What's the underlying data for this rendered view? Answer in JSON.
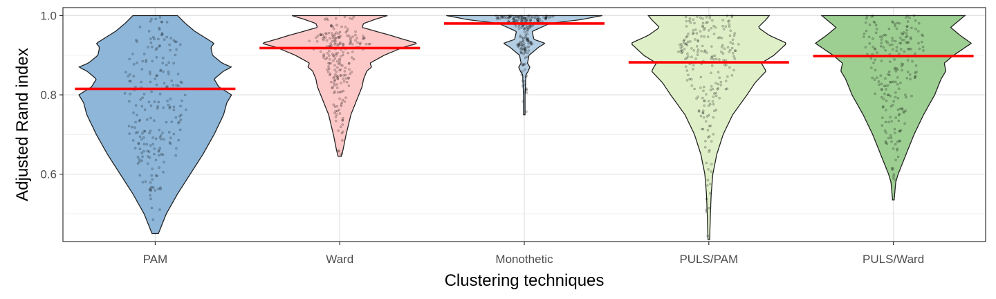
{
  "chart_data": {
    "type": "violin",
    "title": "",
    "xlabel": "Clustering techniques",
    "ylabel": "Adjusted Rand index",
    "ylim": [
      0.43,
      1.02
    ],
    "yticks": [
      0.6,
      0.8,
      1.0
    ],
    "ytick_labels": [
      "0.6",
      "0.8",
      "1.0"
    ],
    "grid": true,
    "legend": "none",
    "median_color": "#ff0000",
    "categories": [
      "PAM",
      "Ward",
      "Monothetic",
      "PULS/PAM",
      "PULS/Ward"
    ],
    "series": [
      {
        "category": "PAM",
        "fill": "#8db6d9",
        "min": 0.45,
        "max": 1.0,
        "mean_line": 0.815,
        "density": [
          [
            0.45,
            0.04
          ],
          [
            0.5,
            0.14
          ],
          [
            0.55,
            0.28
          ],
          [
            0.6,
            0.44
          ],
          [
            0.65,
            0.6
          ],
          [
            0.7,
            0.74
          ],
          [
            0.75,
            0.86
          ],
          [
            0.78,
            0.9
          ],
          [
            0.8,
            0.96
          ],
          [
            0.82,
            0.8
          ],
          [
            0.84,
            0.74
          ],
          [
            0.86,
            0.86
          ],
          [
            0.87,
            0.96
          ],
          [
            0.88,
            0.84
          ],
          [
            0.9,
            0.72
          ],
          [
            0.92,
            0.7
          ],
          [
            0.93,
            0.74
          ],
          [
            0.94,
            0.66
          ],
          [
            0.96,
            0.5
          ],
          [
            0.98,
            0.38
          ],
          [
            1.0,
            0.28
          ]
        ]
      },
      {
        "category": "Ward",
        "fill": "#fdc8c8",
        "min": 0.645,
        "max": 1.0,
        "mean_line": 0.918,
        "density": [
          [
            0.645,
            0.02
          ],
          [
            0.66,
            0.04
          ],
          [
            0.7,
            0.08
          ],
          [
            0.75,
            0.14
          ],
          [
            0.8,
            0.24
          ],
          [
            0.82,
            0.28
          ],
          [
            0.84,
            0.3
          ],
          [
            0.86,
            0.34
          ],
          [
            0.87,
            0.4
          ],
          [
            0.88,
            0.38
          ],
          [
            0.9,
            0.56
          ],
          [
            0.92,
            0.8
          ],
          [
            0.93,
            0.98
          ],
          [
            0.94,
            0.8
          ],
          [
            0.95,
            0.64
          ],
          [
            0.96,
            0.46
          ],
          [
            0.97,
            0.28
          ],
          [
            0.98,
            0.3
          ],
          [
            0.99,
            0.44
          ],
          [
            1.0,
            0.6
          ]
        ]
      },
      {
        "category": "Monothetic",
        "fill": "#b3cde3",
        "min": 0.75,
        "max": 1.0,
        "mean_line": 0.98,
        "density": [
          [
            0.75,
            0.01
          ],
          [
            0.8,
            0.01
          ],
          [
            0.85,
            0.02
          ],
          [
            0.86,
            0.05
          ],
          [
            0.87,
            0.07
          ],
          [
            0.88,
            0.04
          ],
          [
            0.9,
            0.06
          ],
          [
            0.92,
            0.18
          ],
          [
            0.93,
            0.26
          ],
          [
            0.94,
            0.12
          ],
          [
            0.96,
            0.1
          ],
          [
            0.98,
            0.32
          ],
          [
            0.99,
            0.72
          ],
          [
            1.0,
            0.98
          ]
        ]
      },
      {
        "category": "PULS/PAM",
        "fill": "#dff0c8",
        "min": 0.435,
        "max": 1.0,
        "mean_line": 0.882,
        "density": [
          [
            0.435,
            0.01
          ],
          [
            0.5,
            0.02
          ],
          [
            0.55,
            0.03
          ],
          [
            0.6,
            0.05
          ],
          [
            0.65,
            0.1
          ],
          [
            0.7,
            0.18
          ],
          [
            0.75,
            0.3
          ],
          [
            0.8,
            0.48
          ],
          [
            0.83,
            0.58
          ],
          [
            0.86,
            0.72
          ],
          [
            0.88,
            0.66
          ],
          [
            0.9,
            0.82
          ],
          [
            0.93,
            0.98
          ],
          [
            0.95,
            0.76
          ],
          [
            0.97,
            0.62
          ],
          [
            0.99,
            0.72
          ],
          [
            1.0,
            0.76
          ]
        ]
      },
      {
        "category": "PULS/Ward",
        "fill": "#9dcf92",
        "min": 0.535,
        "max": 1.0,
        "mean_line": 0.898,
        "density": [
          [
            0.535,
            0.01
          ],
          [
            0.58,
            0.03
          ],
          [
            0.6,
            0.06
          ],
          [
            0.65,
            0.16
          ],
          [
            0.7,
            0.26
          ],
          [
            0.75,
            0.38
          ],
          [
            0.8,
            0.52
          ],
          [
            0.84,
            0.6
          ],
          [
            0.86,
            0.66
          ],
          [
            0.88,
            0.64
          ],
          [
            0.9,
            0.76
          ],
          [
            0.93,
            0.98
          ],
          [
            0.95,
            0.84
          ],
          [
            0.97,
            0.72
          ],
          [
            0.99,
            0.84
          ],
          [
            1.0,
            0.9
          ]
        ]
      }
    ]
  }
}
